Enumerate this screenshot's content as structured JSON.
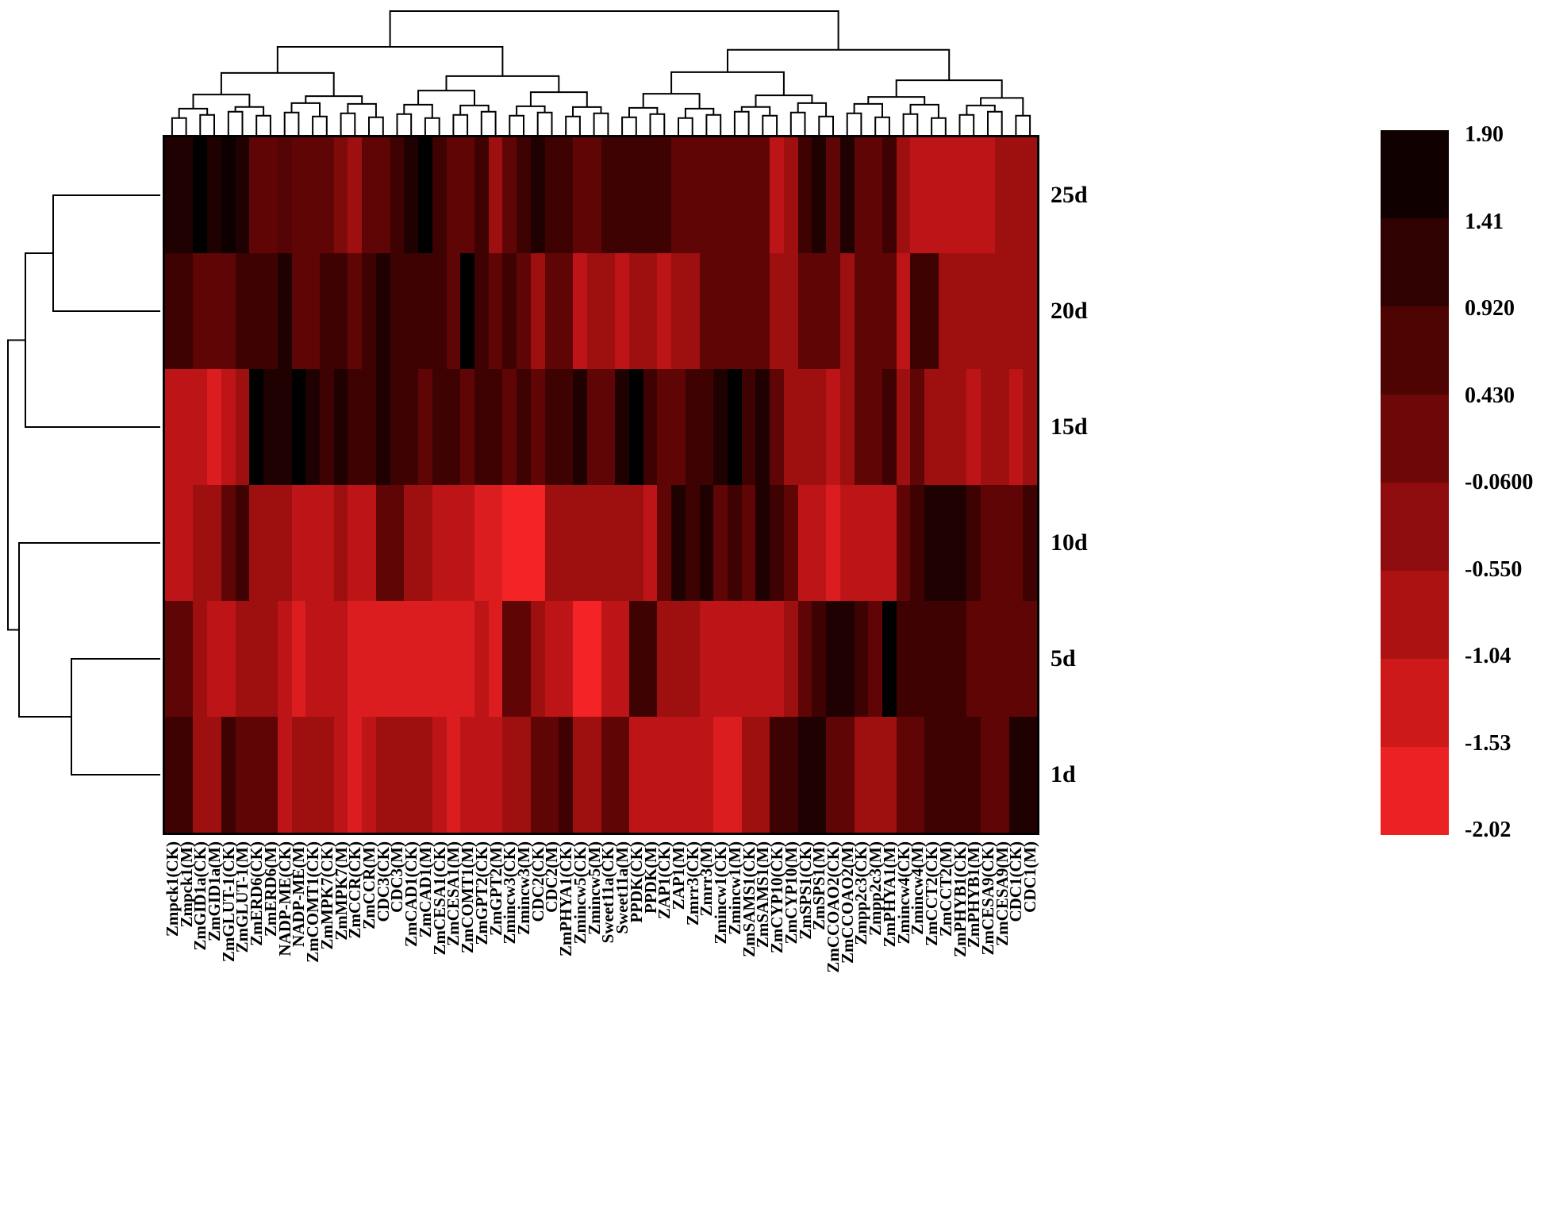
{
  "figure": {
    "description": "Two-way clustered heatmap of gene expression across timepoints",
    "background": "#ffffff",
    "line_color": "#000000"
  },
  "chart_data": {
    "type": "heatmap",
    "legend_position": "right",
    "dendrograms": [
      "top-columns",
      "left-rows"
    ],
    "rows": [
      "25d",
      "20d",
      "15d",
      "10d",
      "5d",
      "1d"
    ],
    "columns": [
      "Zmpck1(CK)",
      "Zmpck1(M)",
      "ZmGID1a(CK)",
      "ZmGID1a(M)",
      "ZmGLUT-1(CK)",
      "ZmGLUT-1(M)",
      "ZmERD6(CK)",
      "ZmERD6(M)",
      "NADP-ME(CK)",
      "NADP-ME(M)",
      "ZmCOMT1(CK)",
      "ZmMPK7(CK)",
      "ZmMPK7(M)",
      "ZmCCR(CK)",
      "ZmCCR(M)",
      "CDC3(CK)",
      "CDC3(M)",
      "ZmCAD1(CK)",
      "ZmCAD1(M)",
      "ZmCESA1(CK)",
      "ZmCESA1(M)",
      "ZmCOMT1(M)",
      "ZmGPT2(CK)",
      "ZmGPT2(M)",
      "Zmincw3(CK)",
      "Zmincw3(M)",
      "CDC2(CK)",
      "CDC2(M)",
      "ZmPHYA1(CK)",
      "Zmincw5(CK)",
      "Zmincw5(M)",
      "Sweet11a(CK)",
      "Sweet11a(M)",
      "PPDK(CK)",
      "PPDK(M)",
      "ZAP1(CK)",
      "ZAP1(M)",
      "Zmrr3(CK)",
      "Zmrr3(M)",
      "Zmincw1(CK)",
      "Zmincw1(M)",
      "ZmSAMS1(CK)",
      "ZmSAMS1(M)",
      "ZmCYP10(CK)",
      "ZmCYP10(M)",
      "ZmSPS1(CK)",
      "ZmSPS1(M)",
      "ZmCCOAO2(CK)",
      "ZmCCOAO2(M)",
      "Zmpp2c3(CK)",
      "Zmpp2c3(M)",
      "ZmPHYA1(M)",
      "Zmincw4(CK)",
      "Zmincw4(M)",
      "ZmCCT2(CK)",
      "ZmCCT2(M)",
      "ZmPHYB1(CK)",
      "ZmPHYB1(M)",
      "ZmCESA9(CK)",
      "ZmCESA9(M)",
      "CDC1(CK)",
      "CDC1(M)"
    ],
    "values": [
      [
        1.4,
        1.4,
        1.9,
        1.4,
        1.7,
        1.4,
        0.43,
        0.43,
        0.6,
        0.43,
        0.43,
        0.43,
        -0.06,
        -0.55,
        0.43,
        0.43,
        0.92,
        1.4,
        1.9,
        0.92,
        0.43,
        0.43,
        0.92,
        -0.55,
        0.43,
        0.92,
        1.4,
        0.92,
        0.92,
        0.43,
        0.43,
        0.92,
        0.92,
        0.92,
        0.92,
        0.92,
        0.43,
        0.43,
        0.43,
        0.43,
        0.43,
        0.43,
        0.43,
        -1.04,
        -0.55,
        0.92,
        1.4,
        0.43,
        1.4,
        0.43,
        0.43,
        0.92,
        -0.55,
        -1.04,
        -1.04,
        -1.04,
        -1.04,
        -1.04,
        -1.04,
        -0.55,
        -0.55,
        -0.55
      ],
      [
        0.92,
        0.92,
        0.43,
        0.43,
        0.43,
        0.92,
        0.92,
        0.92,
        1.4,
        0.43,
        0.43,
        0.92,
        0.92,
        0.43,
        0.92,
        1.4,
        0.92,
        0.92,
        0.92,
        0.92,
        0.43,
        1.9,
        0.92,
        0.43,
        0.92,
        0.43,
        -0.55,
        0.43,
        0.43,
        -1.04,
        -0.55,
        -0.55,
        -1.04,
        -0.55,
        -0.55,
        -1.04,
        -0.55,
        -0.55,
        0.43,
        0.43,
        0.43,
        0.43,
        0.43,
        -0.55,
        -0.55,
        0.43,
        0.43,
        0.43,
        -0.55,
        0.43,
        0.43,
        0.43,
        -1.04,
        0.92,
        0.92,
        -0.55,
        -0.55,
        -0.55,
        -0.55,
        -0.55,
        -0.55,
        -0.55
      ],
      [
        -1.04,
        -1.04,
        -1.04,
        -1.53,
        -1.04,
        -0.55,
        1.9,
        1.4,
        1.4,
        1.9,
        1.4,
        0.92,
        1.4,
        0.92,
        0.92,
        1.4,
        0.92,
        0.92,
        0.43,
        0.92,
        0.92,
        0.43,
        0.92,
        0.92,
        0.43,
        0.92,
        0.43,
        0.92,
        0.92,
        1.4,
        0.43,
        0.43,
        1.4,
        1.9,
        0.92,
        0.43,
        0.43,
        0.92,
        0.92,
        1.4,
        1.9,
        0.92,
        1.4,
        0.43,
        -0.55,
        -0.55,
        -0.55,
        -1.04,
        -0.55,
        0.43,
        0.43,
        0.92,
        -0.55,
        0.43,
        -0.55,
        -0.55,
        -0.55,
        -1.04,
        -0.55,
        -0.55,
        -1.04,
        -0.55
      ],
      [
        -1.04,
        -1.04,
        -0.55,
        -0.55,
        0.43,
        0.92,
        -0.55,
        -0.55,
        -0.55,
        -1.04,
        -1.04,
        -1.04,
        -0.55,
        -1.04,
        -1.04,
        0.43,
        0.43,
        -0.55,
        -0.55,
        -1.04,
        -1.04,
        -1.04,
        -1.53,
        -1.53,
        -1.9,
        -1.9,
        -1.9,
        -0.55,
        -0.55,
        -0.55,
        -0.55,
        -0.55,
        -0.55,
        -0.55,
        -1.04,
        0.43,
        1.4,
        0.92,
        1.4,
        0.43,
        0.92,
        0.43,
        1.4,
        0.92,
        0.43,
        -1.04,
        -1.04,
        -1.53,
        -1.04,
        -1.04,
        -1.04,
        -1.04,
        0.43,
        0.92,
        1.4,
        1.4,
        1.4,
        0.92,
        0.43,
        0.43,
        0.43,
        0.92
      ],
      [
        0.43,
        0.43,
        -0.55,
        -1.04,
        -1.04,
        -0.55,
        -0.55,
        -0.55,
        -1.04,
        -1.53,
        -1.04,
        -1.04,
        -1.04,
        -1.53,
        -1.53,
        -1.53,
        -1.53,
        -1.53,
        -1.53,
        -1.53,
        -1.53,
        -1.53,
        -1.04,
        -1.53,
        0.43,
        0.43,
        -0.55,
        -1.04,
        -1.04,
        -1.9,
        -1.9,
        -1.04,
        -1.04,
        0.92,
        0.92,
        -0.55,
        -0.55,
        -0.55,
        -1.04,
        -1.04,
        -1.04,
        -1.04,
        -1.04,
        -1.04,
        -0.55,
        0.43,
        0.92,
        1.4,
        1.4,
        0.92,
        0.43,
        1.9,
        0.92,
        0.92,
        0.92,
        0.92,
        0.92,
        0.43,
        0.43,
        0.43,
        0.43,
        0.43
      ],
      [
        0.92,
        0.92,
        -0.55,
        -0.55,
        0.92,
        0.43,
        0.43,
        0.43,
        -1.04,
        -0.55,
        -0.55,
        -0.55,
        -1.04,
        -1.53,
        -1.04,
        -0.55,
        -0.55,
        -0.55,
        -0.55,
        -1.04,
        -1.53,
        -1.04,
        -1.04,
        -1.04,
        -0.55,
        -0.55,
        0.43,
        0.43,
        0.92,
        -0.55,
        -0.55,
        0.43,
        0.43,
        -1.04,
        -1.04,
        -1.04,
        -1.04,
        -1.04,
        -1.04,
        -1.53,
        -1.53,
        -0.55,
        -0.55,
        0.92,
        0.92,
        1.4,
        1.4,
        0.43,
        0.43,
        -0.55,
        -0.55,
        -0.55,
        0.43,
        0.43,
        0.92,
        0.92,
        0.92,
        0.92,
        0.43,
        0.43,
        1.4,
        1.4
      ]
    ],
    "colorbar": {
      "ticks": [
        "1.90",
        "1.41",
        "0.920",
        "0.430",
        "-0.0600",
        "-0.550",
        "-1.04",
        "-1.53",
        "-2.02"
      ],
      "max": 1.9,
      "min": -2.02,
      "high_color": "#000000",
      "low_color": "#f32222"
    }
  }
}
